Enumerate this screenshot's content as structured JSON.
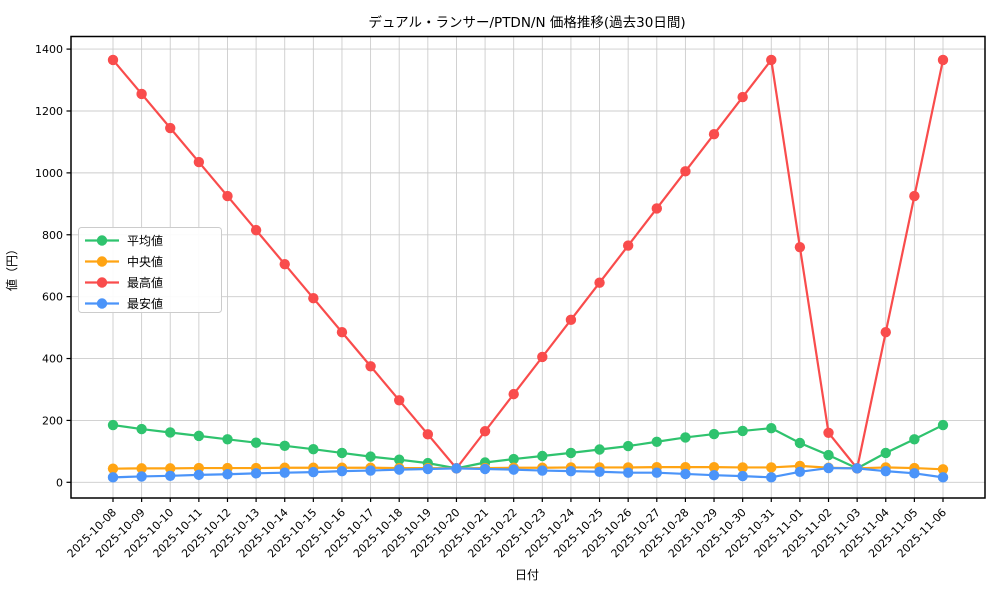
{
  "chart_data": {
    "type": "line",
    "title": "デュアル・ランサー/PTDN/N 価格推移(過去30日間)",
    "xlabel": "日付",
    "ylabel": "値（円）",
    "categories": [
      "2025-10-08",
      "2025-10-09",
      "2025-10-10",
      "2025-10-11",
      "2025-10-12",
      "2025-10-13",
      "2025-10-14",
      "2025-10-15",
      "2025-10-16",
      "2025-10-17",
      "2025-10-18",
      "2025-10-19",
      "2025-10-20",
      "2025-10-21",
      "2025-10-22",
      "2025-10-23",
      "2025-10-24",
      "2025-10-25",
      "2025-10-26",
      "2025-10-27",
      "2025-10-28",
      "2025-10-29",
      "2025-10-30",
      "2025-10-31",
      "2025-11-01",
      "2025-11-02",
      "2025-11-03",
      "2025-11-04",
      "2025-11-05",
      "2025-11-06"
    ],
    "series": [
      {
        "key": "average",
        "name": "平均値",
        "color": "#2fc36e",
        "values": [
          185,
          172,
          161,
          150,
          139,
          128,
          118,
          107,
          95,
          83,
          73,
          62,
          45,
          64,
          75,
          85,
          95,
          106,
          117,
          131,
          145,
          156,
          166,
          175,
          127,
          88,
          45,
          95,
          139,
          185
        ]
      },
      {
        "key": "median",
        "name": "中央値",
        "color": "#ffa413",
        "values": [
          44,
          45,
          45,
          46,
          46,
          46,
          47,
          47,
          47,
          47,
          46,
          46,
          45,
          46,
          47,
          47,
          48,
          48,
          48,
          49,
          49,
          49,
          48,
          48,
          53,
          47,
          45,
          48,
          46,
          42
        ]
      },
      {
        "key": "max",
        "name": "最高値",
        "color": "#f94c4c",
        "values": [
          1365,
          1255,
          1145,
          1035,
          925,
          815,
          705,
          595,
          485,
          375,
          265,
          155,
          45,
          165,
          285,
          405,
          525,
          645,
          765,
          885,
          1005,
          1125,
          1245,
          1365,
          760,
          160,
          45,
          485,
          925,
          1365
        ]
      },
      {
        "key": "min",
        "name": "最安値",
        "color": "#4b94f9",
        "values": [
          16,
          19,
          21,
          24,
          26,
          29,
          31,
          33,
          36,
          38,
          41,
          43,
          45,
          43,
          41,
          38,
          36,
          34,
          31,
          31,
          27,
          23,
          20,
          16,
          34,
          46,
          45,
          36,
          29,
          16
        ]
      }
    ],
    "ylim": [
      0,
      1400
    ],
    "yticks": [
      0,
      200,
      400,
      600,
      800,
      1000,
      1200,
      1400
    ],
    "grid": true,
    "grid_color": "#cccccc",
    "background": "#ffffff",
    "legend_position": "center-left",
    "x_tick_rotation_deg": 45
  }
}
